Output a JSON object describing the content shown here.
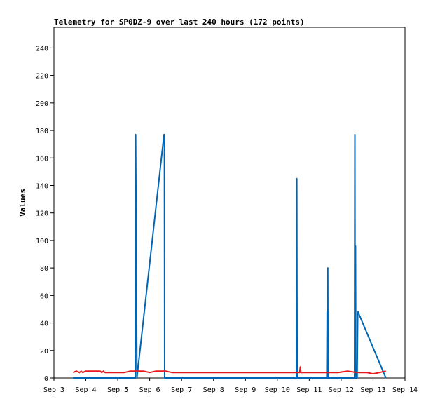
{
  "chart_data": {
    "type": "line",
    "title": "Telemetry for SP0DZ-9 over last 240 hours (172 points)",
    "xlabel": "",
    "ylabel": "Values",
    "x_unit": "days of September",
    "xlim": [
      3,
      14
    ],
    "ylim": [
      0,
      255
    ],
    "x_ticks": [
      3,
      4,
      5,
      6,
      7,
      8,
      9,
      10,
      11,
      12,
      13,
      14
    ],
    "x_tick_labels": [
      "Sep 3",
      "Sep 4",
      "Sep 5",
      "Sep 6",
      "Sep 7",
      "Sep 8",
      "Sep 9",
      "Sep 10",
      "Sep 11",
      "Sep 12",
      "Sep 13",
      "Sep 14"
    ],
    "y_ticks": [
      0,
      20,
      40,
      60,
      80,
      100,
      120,
      140,
      160,
      180,
      200,
      220,
      240
    ],
    "grid": false,
    "legend": "none",
    "series": [
      {
        "color": "#0066b3",
        "x": [
          3.6,
          5.55,
          5.56,
          5.6,
          6.45,
          6.46,
          6.47,
          10.6,
          10.61,
          10.62,
          11.55,
          11.56,
          11.57,
          11.58,
          11.59,
          11.6,
          12.42,
          12.43,
          12.44,
          12.45,
          12.46,
          12.47,
          12.5,
          12.52,
          12.53,
          13.4
        ],
        "y": [
          0,
          0,
          177,
          0,
          177,
          177,
          0,
          0,
          145,
          0,
          0,
          48,
          0,
          80,
          0,
          0,
          0,
          177,
          0,
          96,
          0,
          0,
          0,
          48,
          48,
          0
        ]
      },
      {
        "color": "#e8191c",
        "x": [
          3.6,
          3.7,
          3.8,
          3.85,
          3.9,
          4.0,
          4.2,
          4.45,
          4.5,
          4.55,
          4.6,
          4.8,
          5.0,
          5.2,
          5.4,
          5.6,
          5.8,
          6.0,
          6.2,
          6.4,
          6.5,
          6.7,
          7.0,
          8.0,
          9.0,
          10.0,
          10.5,
          10.7,
          10.72,
          10.74,
          10.8,
          11.0,
          11.3,
          11.6,
          11.9,
          12.2,
          12.5,
          12.8,
          13.0,
          13.2,
          13.4
        ],
        "y": [
          4,
          5,
          4,
          5,
          4,
          5,
          5,
          5,
          4,
          5,
          4,
          4,
          4,
          4,
          5,
          5,
          5,
          4,
          5,
          5,
          5,
          4,
          4,
          4,
          4,
          4,
          4,
          4,
          8,
          4,
          4,
          4,
          4,
          4,
          4,
          5,
          4,
          4,
          3,
          4,
          5
        ]
      }
    ]
  }
}
